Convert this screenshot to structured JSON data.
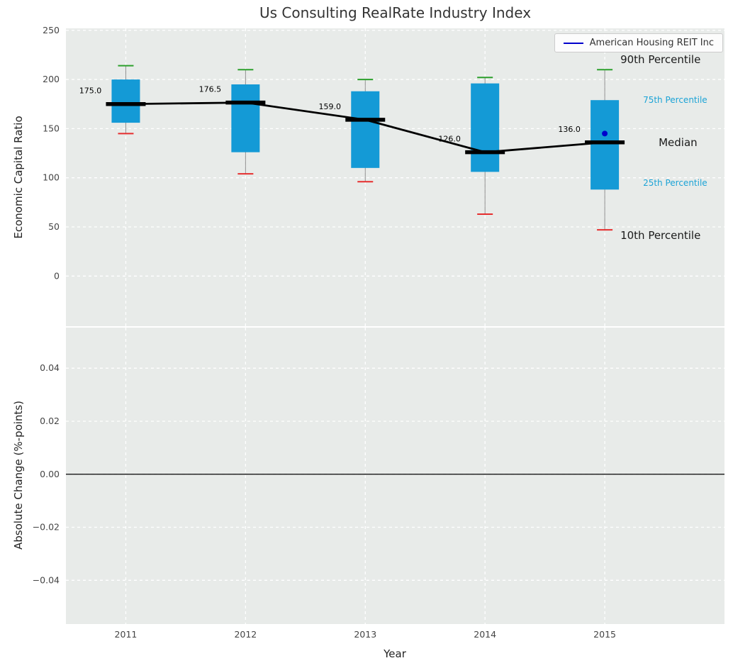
{
  "legend": {
    "label": "American Housing REIT Inc"
  },
  "percentile_labels": {
    "p90": "90th Percentile",
    "p75": "75th Percentile",
    "median": "Median",
    "p25": "25th Percentile",
    "p10": "10th Percentile"
  },
  "colors": {
    "box": "#149ad6",
    "p90_cap": "#2ca02c",
    "p10_cap": "#e62e2e",
    "median": "#000000",
    "company": "#0000cc",
    "panel_bg": "#e8ebe9",
    "grid": "#ffffff",
    "whisker": "#909090",
    "percentile_text": "#1ba3d6"
  },
  "chart_data": {
    "type": "boxplot-timeseries",
    "title": "Us Consulting RealRate Industry Index",
    "xlabel": "Year",
    "legend_label": "American Housing REIT Inc",
    "grid": true,
    "panels": [
      {
        "ylabel": "Economic Capital Ratio",
        "ylim": [
          -51,
          252
        ],
        "ytick_values": [
          250,
          200,
          150,
          100,
          50,
          0
        ],
        "ytick_labels": [
          "250",
          "200",
          "150",
          "100",
          "50",
          "0"
        ],
        "years": [
          2011,
          2012,
          2013,
          2014,
          2015
        ],
        "year_labels": [
          "2011",
          "2012",
          "2013",
          "2014",
          "2015"
        ],
        "p10": [
          145,
          104,
          96,
          63,
          47
        ],
        "p25": [
          156,
          126,
          110,
          106,
          88
        ],
        "median": [
          175.0,
          176.5,
          159.0,
          126.0,
          136.0
        ],
        "p75": [
          200,
          195,
          188,
          196,
          179
        ],
        "p90": [
          214,
          210,
          200,
          202,
          210
        ],
        "median_labels": [
          "175.0",
          "176.5",
          "159.0",
          "126.0",
          "136.0"
        ],
        "company_point": {
          "year": 2015,
          "value": 145
        }
      },
      {
        "ylabel": "Absolute Change (%-points)",
        "ylim": [
          -0.0565,
          0.0553
        ],
        "ytick_values": [
          0.04,
          0.02,
          0.0,
          -0.02,
          -0.04
        ],
        "ytick_labels": [
          "0.04",
          "0.02",
          "0.00",
          "−0.02",
          "−0.04"
        ],
        "zero_line": true
      }
    ]
  }
}
